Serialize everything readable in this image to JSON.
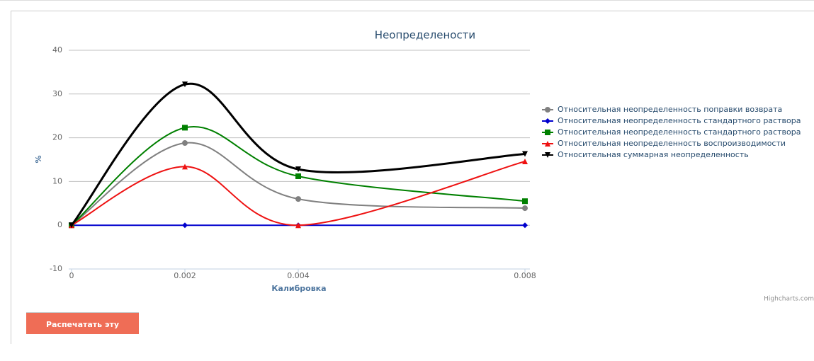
{
  "chart_data": {
    "type": "line",
    "title": "Неопределености",
    "x_label": "Калибровка",
    "y_label": "%",
    "credits": "Highcharts.com",
    "x": [
      0,
      0.002,
      0.004,
      0.008
    ],
    "xlim": [
      0,
      0.008
    ],
    "xticks": [
      0,
      0.002,
      0.004,
      0.008
    ],
    "ylim": [
      -10,
      40
    ],
    "yticks": [
      -10,
      0,
      10,
      20,
      30,
      40
    ],
    "grid": true,
    "smooth": true,
    "legend": "right",
    "series": [
      {
        "name": "Относительная неопределенность поправки возврата",
        "color": "#808080",
        "marker": "circle",
        "values": [
          0,
          18.8,
          6.0,
          3.9
        ]
      },
      {
        "name": "Относительная неопределенность стандартного раствора",
        "color": "#0000cd",
        "marker": "diamond",
        "values": [
          0,
          0,
          0,
          0
        ]
      },
      {
        "name": "Относительная неопределенность стандартного раствора",
        "color": "#008000",
        "marker": "square",
        "values": [
          0,
          22.3,
          11.2,
          5.5
        ]
      },
      {
        "name": "Относительная неопределенность воспроизводимости",
        "color": "#ee1111",
        "marker": "triangle",
        "values": [
          0,
          13.4,
          0,
          14.6
        ]
      },
      {
        "name": "Относительная суммарная неопределенность",
        "color": "#000000",
        "marker": "triangle-down",
        "values": [
          0,
          32.2,
          12.8,
          16.3
        ]
      }
    ]
  },
  "print_button": "Распечатать эту страницу"
}
